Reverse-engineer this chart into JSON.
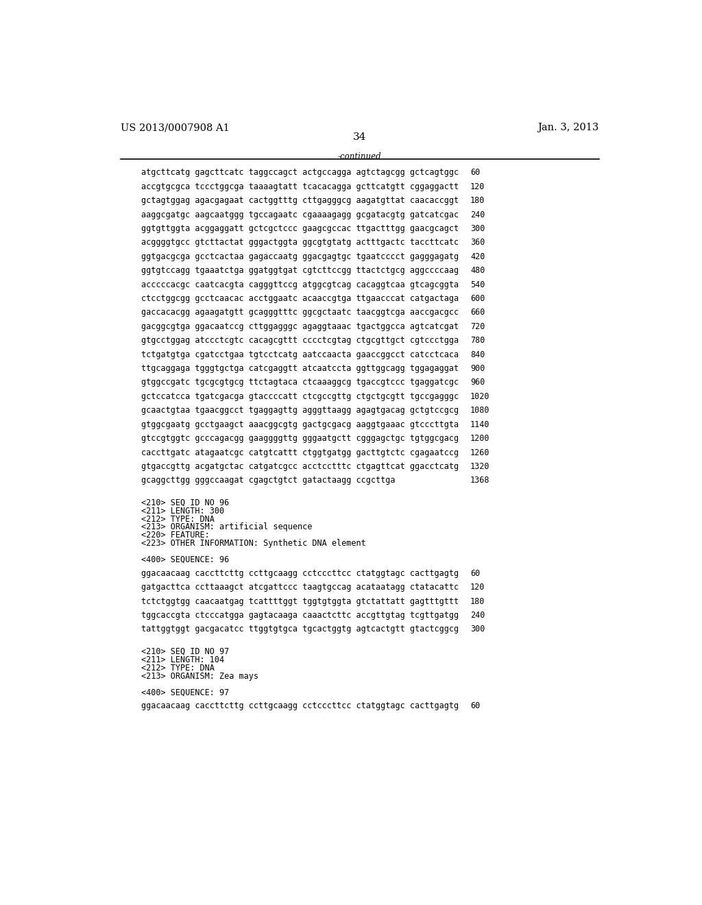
{
  "header_left": "US 2013/0007908 A1",
  "header_right": "Jan. 3, 2013",
  "page_number": "34",
  "continued_label": "-continued",
  "background_color": "#ffffff",
  "text_color": "#000000",
  "font_size_header": 10.5,
  "font_size_body": 8.5,
  "font_size_page": 11,
  "sequence_lines": [
    [
      "atgcttcatg gagcttcatc taggccagct actgccagga agtctagcgg gctcagtggc",
      "60"
    ],
    [
      "accgtgcgca tccctggcga taaaagtatt tcacacagga gcttcatgtt cggaggactt",
      "120"
    ],
    [
      "gctagtggag agacgagaat cactggtttg cttgagggcg aagatgttat caacaccggt",
      "180"
    ],
    [
      "aaggcgatgc aagcaatggg tgccagaatc cgaaaagagg gcgatacgtg gatcatcgac",
      "240"
    ],
    [
      "ggtgttggta acggaggatt gctcgctccc gaagcgccac ttgactttgg gaacgcagct",
      "300"
    ],
    [
      "acggggtgcc gtcttactat gggactggta ggcgtgtatg actttgactc taccttcatc",
      "360"
    ],
    [
      "ggtgacgcga gcctcactaa gagaccaatg ggacgagtgc tgaatcccct gagggagatg",
      "420"
    ],
    [
      "ggtgtccagg tgaaatctga ggatggtgat cgtcttccgg ttactctgcg aggccccaag",
      "480"
    ],
    [
      "acccccacgc caatcacgta cagggttccg atggcgtcag cacaggtcaa gtcagcggta",
      "540"
    ],
    [
      "ctcctggcgg gcctcaacac acctggaatc acaaccgtga ttgaacccat catgactaga",
      "600"
    ],
    [
      "gaccacacgg agaagatgtt gcagggtttc ggcgctaatc taacggtcga aaccgacgcc",
      "660"
    ],
    [
      "gacggcgtga ggacaatccg cttggagggc agaggtaaac tgactggcca agtcatcgat",
      "720"
    ],
    [
      "gtgcctggag atccctcgtc cacagcgttt cccctcgtag ctgcgttgct cgtccctgga",
      "780"
    ],
    [
      "tctgatgtga cgatcctgaa tgtcctcatg aatccaacta gaaccggcct catcctcaca",
      "840"
    ],
    [
      "ttgcaggaga tgggtgctga catcgaggtt atcaatccta ggttggcagg tggagaggat",
      "900"
    ],
    [
      "gtggccgatc tgcgcgtgcg ttctagtaca ctcaaaggcg tgaccgtccc tgaggatcgc",
      "960"
    ],
    [
      "gctccatcca tgatcgacga gtaccccatt ctcgccgttg ctgctgcgtt tgccgagggc",
      "1020"
    ],
    [
      "gcaactgtaa tgaacggcct tgaggagttg agggttaagg agagtgacag gctgtccgcg",
      "1080"
    ],
    [
      "gtggcgaatg gcctgaagct aaacggcgtg gactgcgacg aaggtgaaac gtcccttgta",
      "1140"
    ],
    [
      "gtccgtggtc gcccagacgg gaaggggttg gggaatgctt cgggagctgc tgtggcgacg",
      "1200"
    ],
    [
      "caccttgatc atagaatcgc catgtcattt ctggtgatgg gacttgtctc cgagaatccg",
      "1260"
    ],
    [
      "gtgaccgttg acgatgctac catgatcgcc acctcctttc ctgagttcat ggacctcatg",
      "1320"
    ],
    [
      "gcaggcttgg gggccaagat cgagctgtct gatactaagg ccgcttga",
      "1368"
    ]
  ],
  "metadata_block": [
    "<210> SEQ ID NO 96",
    "<211> LENGTH: 300",
    "<212> TYPE: DNA",
    "<213> ORGANISM: artificial sequence",
    "<220> FEATURE:",
    "<223> OTHER INFORMATION: Synthetic DNA element"
  ],
  "sequence_label_96": "<400> SEQUENCE: 96",
  "sequence_lines_96": [
    [
      "ggacaacaag caccttcttg ccttgcaagg cctcccttcc ctatggtagc cacttgagtg",
      "60"
    ],
    [
      "gatgacttca ccttaaagct atcgattccc taagtgccag acataatagg ctatacattc",
      "120"
    ],
    [
      "tctctggtgg caacaatgag tcattttggt tggtgtggta gtctattatt gagtttgttt",
      "180"
    ],
    [
      "tggcaccgta ctcccatgga gagtacaaga caaactcttc accgttgtag tcgttgatgg",
      "240"
    ],
    [
      "tattggtggt gacgacatcc ttggtgtgca tgcactggtg agtcactgtt gtactcggcg",
      "300"
    ]
  ],
  "metadata_block_97": [
    "<210> SEQ ID NO 97",
    "<211> LENGTH: 104",
    "<212> TYPE: DNA",
    "<213> ORGANISM: Zea mays"
  ],
  "sequence_label_97": "<400> SEQUENCE: 97",
  "sequence_lines_97": [
    [
      "ggacaacaag caccttcttg ccttgcaagg cctcccttcc ctatggtagc cacttgagtg",
      "60"
    ]
  ]
}
